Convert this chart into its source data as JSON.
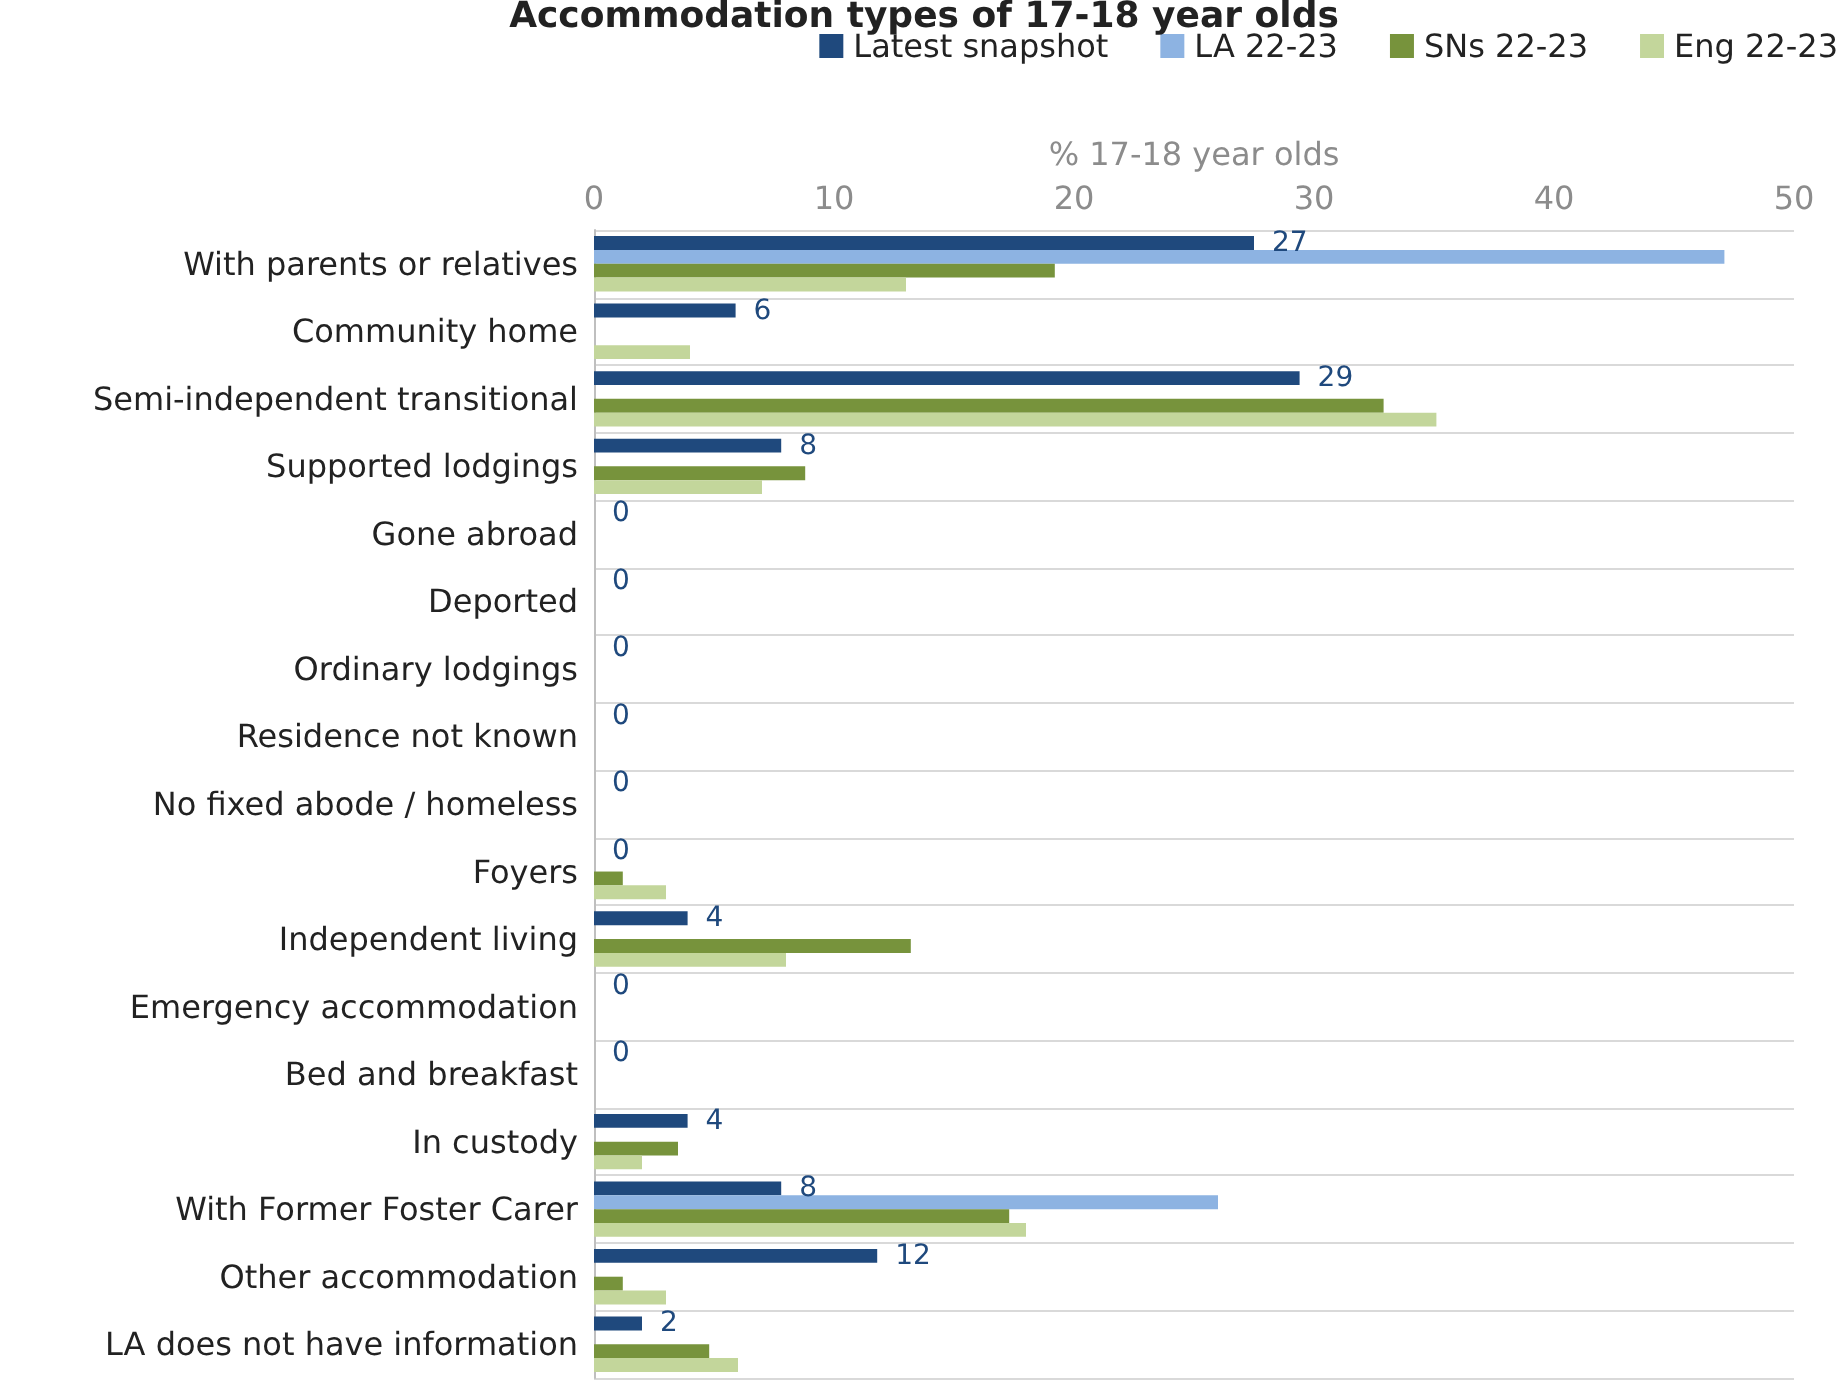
{
  "chart_data": {
    "type": "bar",
    "orientation": "horizontal",
    "title": "Accommodation types of 17-18 year olds",
    "xlabel": "% 17-18 year olds",
    "categories": [
      "With parents or relatives",
      "Community home",
      "Semi-independent transitional",
      "Supported lodgings",
      "Gone abroad",
      "Deported",
      "Ordinary lodgings",
      "Residence not known",
      "No fixed abode / homeless",
      "Foyers",
      "Independent living",
      "Emergency accommodation",
      "Bed and breakfast",
      "In custody",
      "With Former Foster Carer",
      "Other accommodation",
      "LA does not have information"
    ],
    "series": [
      {
        "name": "Latest snapshot",
        "color": "#1f497d",
        "values": [
          27.5,
          5.9,
          29.4,
          7.8,
          0,
          0,
          0,
          0,
          0,
          0,
          3.9,
          0,
          0,
          3.9,
          7.8,
          11.8,
          2.0
        ],
        "value_labels": [
          "27",
          "6",
          "29",
          "8",
          "0",
          "0",
          "0",
          "0",
          "0",
          "0",
          "4",
          "0",
          "0",
          "4",
          "8",
          "12",
          "2"
        ]
      },
      {
        "name": "LA 22-23",
        "color": "#8db3e2",
        "values": [
          47.1,
          null,
          null,
          null,
          null,
          null,
          null,
          null,
          null,
          null,
          null,
          null,
          null,
          null,
          26.0,
          null,
          null
        ]
      },
      {
        "name": "SNs 22-23",
        "color": "#77933c",
        "values": [
          19.2,
          null,
          32.9,
          8.8,
          null,
          null,
          null,
          null,
          null,
          1.2,
          13.2,
          null,
          null,
          3.5,
          17.3,
          1.2,
          4.8
        ]
      },
      {
        "name": "Eng 22-23",
        "color": "#c3d69b",
        "values": [
          13.0,
          4.0,
          35.1,
          7.0,
          null,
          null,
          null,
          null,
          null,
          3.0,
          8.0,
          null,
          null,
          2.0,
          18.0,
          3.0,
          6.0
        ]
      }
    ],
    "xlim": [
      0,
      50
    ],
    "xticks": [
      0,
      10,
      20,
      30,
      40,
      50
    ],
    "grid": "y",
    "legend": "top right"
  }
}
